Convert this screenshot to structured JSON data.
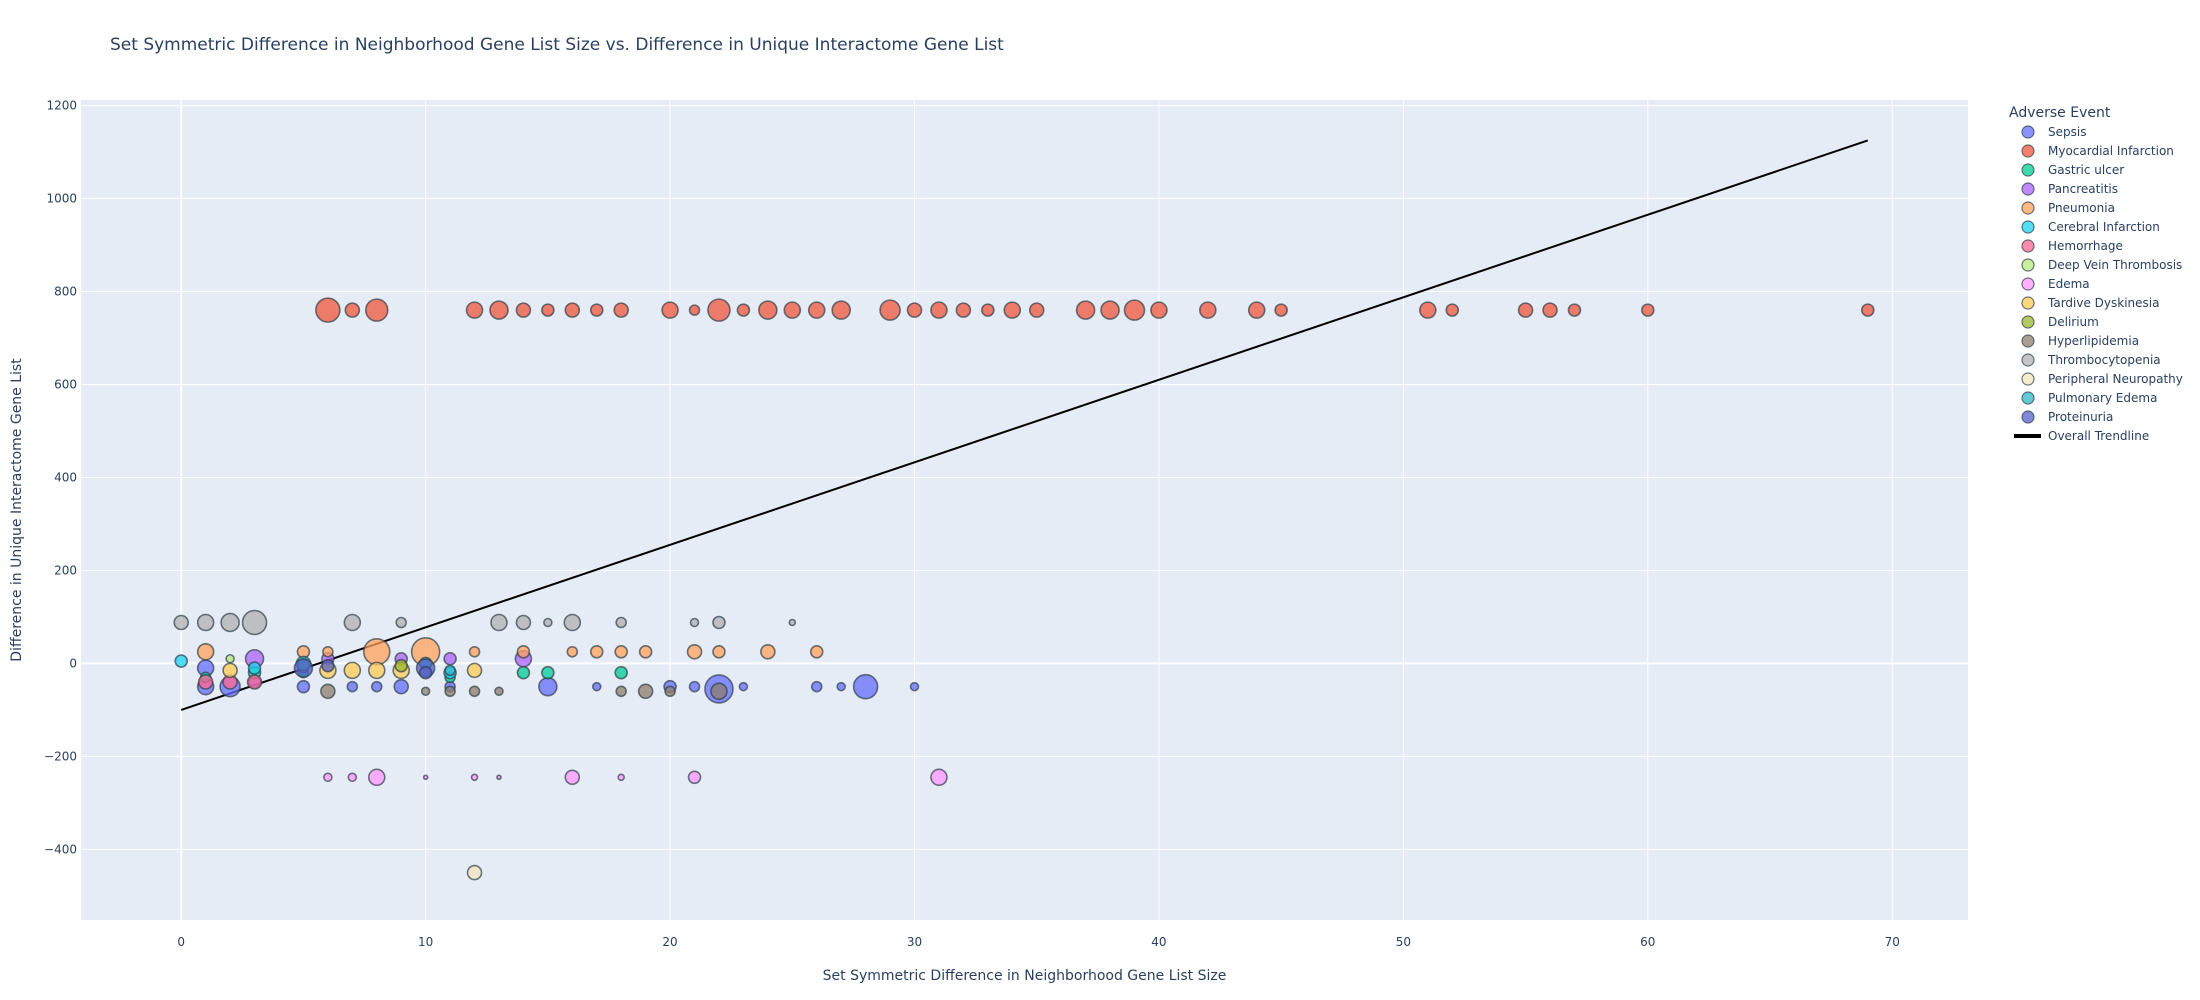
{
  "chart_data": {
    "type": "scatter",
    "title": "Set Symmetric Difference in Neighborhood Gene List Size vs. Difference in Unique Interactome Gene List",
    "xlabel": "Set Symmetric Difference in Neighborhood Gene List Size",
    "ylabel": "Difference in Unique Interactome Gene List",
    "xlim": [
      -4.1,
      73.1
    ],
    "ylim": [
      -552,
      1212
    ],
    "x_ticks": [
      0,
      10,
      20,
      30,
      40,
      50,
      60,
      70
    ],
    "y_ticks": [
      -400,
      -200,
      0,
      200,
      400,
      600,
      800,
      1000,
      1200
    ],
    "grid": true,
    "legend_title": "Adverse Event",
    "legend_position": "right",
    "series": [
      {
        "name": "Sepsis",
        "color": "#636efa",
        "points": [
          [
            1,
            -10,
            8
          ],
          [
            1,
            -50,
            8
          ],
          [
            2,
            -50,
            10
          ],
          [
            3,
            -40,
            6
          ],
          [
            5,
            -50,
            6
          ],
          [
            7,
            -50,
            5
          ],
          [
            8,
            -50,
            5
          ],
          [
            9,
            -50,
            7
          ],
          [
            11,
            -50,
            5
          ],
          [
            15,
            -50,
            9
          ],
          [
            17,
            -50,
            4
          ],
          [
            20,
            -50,
            6
          ],
          [
            21,
            -50,
            5
          ],
          [
            22,
            -55,
            14
          ],
          [
            23,
            -50,
            4
          ],
          [
            26,
            -50,
            5
          ],
          [
            27,
            -50,
            4
          ],
          [
            28,
            -50,
            12
          ],
          [
            30,
            -50,
            4
          ]
        ]
      },
      {
        "name": "Myocardial Infarction",
        "color": "#ef553b",
        "points": [
          [
            6,
            760,
            12
          ],
          [
            7,
            760,
            7
          ],
          [
            8,
            760,
            11
          ],
          [
            12,
            760,
            8
          ],
          [
            13,
            760,
            9
          ],
          [
            14,
            760,
            7
          ],
          [
            15,
            760,
            6
          ],
          [
            16,
            760,
            7
          ],
          [
            17,
            760,
            6
          ],
          [
            18,
            760,
            7
          ],
          [
            20,
            760,
            8
          ],
          [
            21,
            760,
            5
          ],
          [
            22,
            760,
            11
          ],
          [
            23,
            760,
            6
          ],
          [
            24,
            760,
            9
          ],
          [
            25,
            760,
            8
          ],
          [
            26,
            760,
            8
          ],
          [
            27,
            760,
            9
          ],
          [
            29,
            760,
            10
          ],
          [
            30,
            760,
            7
          ],
          [
            31,
            760,
            8
          ],
          [
            32,
            760,
            7
          ],
          [
            33,
            760,
            6
          ],
          [
            34,
            760,
            8
          ],
          [
            35,
            760,
            7
          ],
          [
            37,
            760,
            9
          ],
          [
            38,
            760,
            9
          ],
          [
            39,
            760,
            10
          ],
          [
            40,
            760,
            8
          ],
          [
            42,
            760,
            8
          ],
          [
            44,
            760,
            8
          ],
          [
            45,
            760,
            6
          ],
          [
            51,
            760,
            8
          ],
          [
            52,
            760,
            6
          ],
          [
            55,
            760,
            7
          ],
          [
            56,
            760,
            7
          ],
          [
            57,
            760,
            6
          ],
          [
            60,
            760,
            6
          ],
          [
            69,
            760,
            6
          ]
        ]
      },
      {
        "name": "Gastric ulcer",
        "color": "#00cc96",
        "points": [
          [
            1,
            -30,
            5
          ],
          [
            3,
            -20,
            6
          ],
          [
            5,
            -20,
            5
          ],
          [
            11,
            -30,
            5
          ],
          [
            14,
            -20,
            6
          ],
          [
            15,
            -20,
            6
          ],
          [
            18,
            -20,
            6
          ]
        ]
      },
      {
        "name": "Pancreatitis",
        "color": "#ab63fa",
        "points": [
          [
            3,
            10,
            9
          ],
          [
            6,
            10,
            6
          ],
          [
            9,
            10,
            6
          ],
          [
            11,
            10,
            6
          ],
          [
            14,
            10,
            8
          ]
        ]
      },
      {
        "name": "Pneumonia",
        "color": "#ffa15a",
        "points": [
          [
            1,
            25,
            8
          ],
          [
            5,
            25,
            6
          ],
          [
            6,
            25,
            5
          ],
          [
            8,
            25,
            13
          ],
          [
            10,
            25,
            14
          ],
          [
            12,
            25,
            5
          ],
          [
            14,
            25,
            6
          ],
          [
            16,
            25,
            5
          ],
          [
            17,
            25,
            6
          ],
          [
            18,
            25,
            6
          ],
          [
            19,
            25,
            6
          ],
          [
            21,
            25,
            7
          ],
          [
            22,
            25,
            6
          ],
          [
            24,
            25,
            7
          ],
          [
            26,
            25,
            6
          ]
        ]
      },
      {
        "name": "Cerebral Infarction",
        "color": "#19d3f3",
        "points": [
          [
            0,
            5,
            6
          ],
          [
            3,
            -10,
            6
          ],
          [
            11,
            -20,
            6
          ]
        ]
      },
      {
        "name": "Hemorrhage",
        "color": "#ff6692",
        "points": [
          [
            1,
            -40,
            7
          ],
          [
            2,
            -40,
            7
          ],
          [
            3,
            -40,
            7
          ]
        ]
      },
      {
        "name": "Deep Vein Thrombosis",
        "color": "#b6e880",
        "points": [
          [
            2,
            10,
            4
          ],
          [
            5,
            -10,
            5
          ]
        ]
      },
      {
        "name": "Edema",
        "color": "#ff97ff",
        "points": [
          [
            6,
            -245,
            4
          ],
          [
            7,
            -245,
            4
          ],
          [
            8,
            -245,
            8
          ],
          [
            10,
            -245,
            2
          ],
          [
            12,
            -245,
            3
          ],
          [
            13,
            -245,
            2
          ],
          [
            16,
            -245,
            7
          ],
          [
            18,
            -245,
            3
          ],
          [
            21,
            -245,
            6
          ],
          [
            31,
            -245,
            8
          ]
        ]
      },
      {
        "name": "Tardive Dyskinesia",
        "color": "#fecb52",
        "points": [
          [
            2,
            -15,
            7
          ],
          [
            6,
            -15,
            8
          ],
          [
            7,
            -15,
            8
          ],
          [
            8,
            -15,
            8
          ],
          [
            9,
            -15,
            8
          ],
          [
            12,
            -15,
            7
          ]
        ]
      },
      {
        "name": "Delirium",
        "color": "#9ab82e",
        "points": [
          [
            5,
            -5,
            6
          ],
          [
            9,
            -5,
            6
          ]
        ]
      },
      {
        "name": "Hyperlipidemia",
        "color": "#8c7d6b",
        "points": [
          [
            6,
            -60,
            7
          ],
          [
            10,
            -60,
            4
          ],
          [
            11,
            -60,
            5
          ],
          [
            12,
            -60,
            5
          ],
          [
            13,
            -60,
            4
          ],
          [
            18,
            -60,
            5
          ],
          [
            19,
            -60,
            7
          ],
          [
            20,
            -60,
            5
          ],
          [
            22,
            -60,
            8
          ]
        ]
      },
      {
        "name": "Thrombocytopenia",
        "color": "#b0b0b0",
        "points": [
          [
            0,
            88,
            7
          ],
          [
            1,
            88,
            8
          ],
          [
            2,
            88,
            9
          ],
          [
            3,
            88,
            12
          ],
          [
            7,
            88,
            8
          ],
          [
            9,
            88,
            5
          ],
          [
            13,
            88,
            8
          ],
          [
            14,
            88,
            7
          ],
          [
            15,
            88,
            4
          ],
          [
            16,
            88,
            8
          ],
          [
            18,
            88,
            5
          ],
          [
            21,
            88,
            4
          ],
          [
            22,
            88,
            6
          ],
          [
            25,
            88,
            3
          ]
        ]
      },
      {
        "name": "Peripheral Neuropathy",
        "color": "#f1e6bd",
        "points": [
          [
            12,
            -450,
            7
          ]
        ]
      },
      {
        "name": "Pulmonary Edema",
        "color": "#2fb4c8",
        "points": [
          [
            5,
            0,
            7
          ],
          [
            10,
            0,
            6
          ],
          [
            11,
            -15,
            5
          ]
        ]
      },
      {
        "name": "Proteinuria",
        "color": "#5360c8",
        "points": [
          [
            5,
            -10,
            9
          ],
          [
            6,
            -5,
            6
          ],
          [
            10,
            -10,
            9
          ],
          [
            10,
            -20,
            6
          ]
        ]
      },
      {
        "name": "Overall Trendline",
        "color": "#000000",
        "type": "line",
        "x": [
          0,
          69
        ],
        "y": [
          -100,
          1125
        ]
      }
    ]
  }
}
